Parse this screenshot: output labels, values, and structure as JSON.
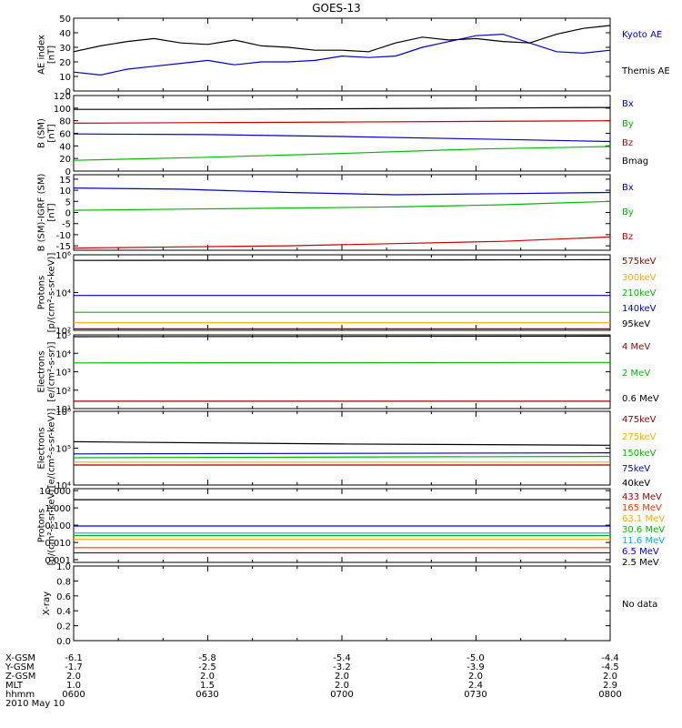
{
  "title": "GOES-13",
  "chart_data": [
    {
      "type": "line",
      "id": "ae",
      "ylabel": [
        "AE index",
        "[nT]"
      ],
      "ylim": [
        0,
        50
      ],
      "yticks": [
        "0",
        "10",
        "20",
        "30",
        "40",
        "50"
      ],
      "xlim": [
        6.0,
        8.0
      ],
      "legend": [
        {
          "label": "Kyoto AE",
          "color": "#0000cc"
        },
        {
          "label": "Themis AE",
          "color": "#000000"
        }
      ],
      "series": [
        {
          "name": "Kyoto AE",
          "color": "#0000cc",
          "x": [
            6.0,
            6.1,
            6.2,
            6.3,
            6.4,
            6.5,
            6.6,
            6.7,
            6.8,
            6.9,
            7.0,
            7.1,
            7.2,
            7.3,
            7.4,
            7.5,
            7.6,
            7.7,
            7.8,
            7.9,
            8.0
          ],
          "y": [
            13,
            11,
            15,
            17,
            19,
            21,
            18,
            20,
            20,
            21,
            24,
            23,
            24,
            30,
            34,
            38,
            39,
            33,
            27,
            26,
            28
          ]
        },
        {
          "name": "Themis AE",
          "color": "#000000",
          "x": [
            6.0,
            6.1,
            6.2,
            6.3,
            6.4,
            6.5,
            6.6,
            6.7,
            6.8,
            6.9,
            7.0,
            7.1,
            7.2,
            7.3,
            7.4,
            7.5,
            7.6,
            7.7,
            7.8,
            7.9,
            8.0
          ],
          "y": [
            27,
            31,
            34,
            36,
            33,
            32,
            35,
            31,
            30,
            28,
            28,
            27,
            33,
            37,
            35,
            36,
            34,
            33,
            39,
            43,
            45
          ]
        }
      ]
    },
    {
      "type": "line",
      "id": "bsm",
      "ylabel": [
        "B (SM)",
        "[nT]"
      ],
      "ylim": [
        0,
        120
      ],
      "yticks": [
        "0",
        "20",
        "40",
        "60",
        "80",
        "100",
        "120"
      ],
      "xlim": [
        6.0,
        8.0
      ],
      "legend": [
        {
          "label": "Bx",
          "color": "#0000cc"
        },
        {
          "label": "By",
          "color": "#00bb00"
        },
        {
          "label": "Bz",
          "color": "#cc0000"
        },
        {
          "label": "Bmag",
          "color": "#000000"
        }
      ],
      "series": [
        {
          "name": "Bx",
          "color": "#0000cc",
          "x": [
            6.0,
            6.5,
            7.0,
            7.5,
            8.0
          ],
          "y": [
            59,
            58,
            55,
            51,
            47
          ]
        },
        {
          "name": "By",
          "color": "#00bb00",
          "x": [
            6.0,
            6.5,
            7.0,
            7.5,
            8.0
          ],
          "y": [
            17,
            22,
            28,
            35,
            39
          ]
        },
        {
          "name": "Bz",
          "color": "#cc0000",
          "x": [
            6.0,
            6.5,
            7.0,
            7.5,
            8.0
          ],
          "y": [
            76,
            77,
            78,
            79,
            80
          ]
        },
        {
          "name": "Bmag",
          "color": "#000000",
          "x": [
            6.0,
            6.5,
            7.0,
            7.5,
            8.0
          ],
          "y": [
            98,
            98,
            99,
            100,
            101
          ]
        }
      ]
    },
    {
      "type": "line",
      "id": "bdiff",
      "ylabel": [
        "B (SM)-IGRF (SM)",
        "[nT]"
      ],
      "ylim": [
        -17,
        17
      ],
      "yticks": [
        "-15",
        "-10",
        "-5",
        "0",
        "5",
        "10",
        "15"
      ],
      "ytickvals": [
        -15,
        -10,
        -5,
        0,
        5,
        10,
        15
      ],
      "xlim": [
        6.0,
        8.0
      ],
      "legend": [
        {
          "label": "Bx",
          "color": "#0000cc"
        },
        {
          "label": "By",
          "color": "#00bb00"
        },
        {
          "label": "Bz",
          "color": "#cc0000"
        }
      ],
      "series": [
        {
          "name": "Bx",
          "color": "#0000cc",
          "x": [
            6.0,
            6.4,
            6.8,
            7.2,
            7.6,
            8.0
          ],
          "y": [
            11,
            10.5,
            9,
            8,
            8.5,
            9
          ]
        },
        {
          "name": "By",
          "color": "#00bb00",
          "x": [
            6.0,
            6.4,
            6.8,
            7.2,
            7.6,
            8.0
          ],
          "y": [
            1,
            1.5,
            2,
            2.5,
            3.5,
            5
          ]
        },
        {
          "name": "Bz",
          "color": "#cc0000",
          "x": [
            6.0,
            6.4,
            6.8,
            7.2,
            7.6,
            8.0
          ],
          "y": [
            -16,
            -15.5,
            -15,
            -14,
            -13,
            -11
          ]
        }
      ]
    },
    {
      "type": "line",
      "id": "protons-low",
      "log": true,
      "ylabel": [
        "Protons",
        "[p/(cm²-s-sr-keV)]"
      ],
      "ylim": [
        100,
        1000000
      ],
      "yticks": [
        "10²",
        "10⁴",
        "10⁶"
      ],
      "ytickvals": [
        100,
        10000,
        1000000
      ],
      "xlim": [
        6.0,
        8.0
      ],
      "legend": [
        {
          "label": "575keV",
          "color": "#990000"
        },
        {
          "label": "300keV",
          "color": "#ffaa00"
        },
        {
          "label": "210keV",
          "color": "#00bb00"
        },
        {
          "label": "140keV",
          "color": "#0000cc"
        },
        {
          "label": "95keV",
          "color": "#000000"
        }
      ],
      "series": [
        {
          "name": "575keV",
          "color": "#990000",
          "x": [
            6.0,
            8.0
          ],
          "y": [
            120,
            120
          ]
        },
        {
          "name": "300keV",
          "color": "#ffaa00",
          "x": [
            6.0,
            8.0
          ],
          "y": [
            250,
            250
          ]
        },
        {
          "name": "210keV",
          "color": "#00bb00",
          "x": [
            6.0,
            8.0
          ],
          "y": [
            900,
            900
          ]
        },
        {
          "name": "140keV",
          "color": "#0000cc",
          "x": [
            6.0,
            8.0
          ],
          "y": [
            7000,
            7000
          ]
        },
        {
          "name": "95keV",
          "color": "#000000",
          "x": [
            6.0,
            8.0
          ],
          "y": [
            500000,
            550000
          ]
        }
      ]
    },
    {
      "type": "line",
      "id": "electrons-high",
      "log": true,
      "ylabel": [
        "Electrons",
        "[e/(cm²-s-sr)]"
      ],
      "ylim": [
        10,
        100000
      ],
      "yticks": [
        "10¹",
        "10²",
        "10³",
        "10⁴",
        "10⁵"
      ],
      "ytickvals": [
        10,
        100,
        1000,
        10000,
        100000
      ],
      "xlim": [
        6.0,
        8.0
      ],
      "legend": [
        {
          "label": "4 MeV",
          "color": "#990000"
        },
        {
          "label": "2 MeV",
          "color": "#00bb00"
        },
        {
          "label": "0.6 MeV",
          "color": "#000000"
        }
      ],
      "series": [
        {
          "name": "4 MeV",
          "color": "#990000",
          "x": [
            6.0,
            8.0
          ],
          "y": [
            25,
            25
          ]
        },
        {
          "name": "2 MeV",
          "color": "#00bb00",
          "x": [
            6.0,
            8.0
          ],
          "y": [
            3000,
            3200
          ]
        },
        {
          "name": "0.6 MeV",
          "color": "#000000",
          "x": [
            6.0,
            8.0
          ],
          "y": [
            80000,
            85000
          ]
        }
      ]
    },
    {
      "type": "line",
      "id": "electrons-low",
      "log": true,
      "ylabel": [
        "Electrons",
        "[e/(cm²-s-sr-keV)]"
      ],
      "ylim": [
        10000,
        1000000
      ],
      "yticks": [
        "10⁴",
        "10⁵",
        "10⁶"
      ],
      "ytickvals": [
        10000,
        100000,
        1000000
      ],
      "xlim": [
        6.0,
        8.0
      ],
      "legend": [
        {
          "label": "475keV",
          "color": "#990000"
        },
        {
          "label": "275keV",
          "color": "#ffaa00"
        },
        {
          "label": "150keV",
          "color": "#00bb00"
        },
        {
          "label": "75keV",
          "color": "#0000cc"
        },
        {
          "label": "40keV",
          "color": "#000000"
        }
      ],
      "series": [
        {
          "name": "475keV",
          "color": "#990000",
          "x": [
            6.0,
            8.0
          ],
          "y": [
            35000,
            35000
          ]
        },
        {
          "name": "275keV",
          "color": "#ffaa00",
          "x": [
            6.0,
            8.0
          ],
          "y": [
            42000,
            42000
          ]
        },
        {
          "name": "150keV",
          "color": "#00bb00",
          "x": [
            6.0,
            8.0
          ],
          "y": [
            55000,
            60000
          ]
        },
        {
          "name": "75keV",
          "color": "#0000cc",
          "x": [
            6.0,
            8.0
          ],
          "y": [
            70000,
            75000
          ]
        },
        {
          "name": "40keV",
          "color": "#000000",
          "x": [
            6.0,
            7.0,
            8.0
          ],
          "y": [
            150000,
            130000,
            120000
          ]
        }
      ]
    },
    {
      "type": "line",
      "id": "protons-high",
      "log": true,
      "ylabel": [
        "Protons",
        "[p/(cm²-s-sr-keV)]"
      ],
      "ylim": [
        0.0007,
        13
      ],
      "yticks": [
        "0.001",
        "0.010",
        "0.100",
        "1.000",
        "10.000"
      ],
      "ytickvals": [
        0.001,
        0.01,
        0.1,
        1,
        10
      ],
      "xlim": [
        6.0,
        8.0
      ],
      "legend": [
        {
          "label": "433 MeV",
          "color": "#990000"
        },
        {
          "label": "165 MeV",
          "color": "#ff3300"
        },
        {
          "label": "63.1 MeV",
          "color": "#ffaa00"
        },
        {
          "label": "30.6 MeV",
          "color": "#00bb00"
        },
        {
          "label": "11.6 MeV",
          "color": "#00aaff"
        },
        {
          "label": "6.5 MeV",
          "color": "#0000cc"
        },
        {
          "label": "2.5 MeV",
          "color": "#000000"
        }
      ],
      "series": [
        {
          "name": "433 MeV",
          "color": "#990000",
          "x": [
            6.0,
            8.0
          ],
          "y": [
            0.0025,
            0.0025
          ]
        },
        {
          "name": "165 MeV",
          "color": "#ff3300",
          "x": [
            6.0,
            8.0
          ],
          "y": [
            0.005,
            0.005
          ]
        },
        {
          "name": "63.1 MeV",
          "color": "#ffaa00",
          "x": [
            6.0,
            8.0
          ],
          "y": [
            0.015,
            0.015
          ]
        },
        {
          "name": "30.6 MeV",
          "color": "#00bb00",
          "x": [
            6.0,
            8.0
          ],
          "y": [
            0.025,
            0.025
          ]
        },
        {
          "name": "11.6 MeV",
          "color": "#00aaff",
          "x": [
            6.0,
            8.0
          ],
          "y": [
            0.035,
            0.035
          ]
        },
        {
          "name": "6.5 MeV",
          "color": "#0000cc",
          "x": [
            6.0,
            8.0
          ],
          "y": [
            0.09,
            0.09
          ]
        },
        {
          "name": "2.5 MeV",
          "color": "#000000",
          "x": [
            6.0,
            8.0
          ],
          "y": [
            3.0,
            3.0
          ]
        }
      ]
    },
    {
      "type": "line",
      "id": "xray",
      "ylabel": [
        "X-ray"
      ],
      "ylim": [
        0.0,
        1.0
      ],
      "yticks": [
        "0.0",
        "0.2",
        "0.4",
        "0.6",
        "0.8",
        "1.0"
      ],
      "xlim": [
        6.0,
        8.0
      ],
      "note": "No data",
      "series": []
    }
  ],
  "axis_table": {
    "rows": [
      {
        "label": "X-GSM",
        "values": [
          "-6.1",
          "-5.8",
          "-5.4",
          "-5.0",
          "-4.4"
        ]
      },
      {
        "label": "Y-GSM",
        "values": [
          "-1.7",
          "-2.5",
          "-3.2",
          "-3.9",
          "-4.5"
        ]
      },
      {
        "label": "Z-GSM",
        "values": [
          "2.0",
          "2.0",
          "2.0",
          "2.0",
          "2.0"
        ]
      },
      {
        "label": "MLT",
        "values": [
          "1.0",
          "1.5",
          "2.0",
          "2.4",
          "2.9"
        ]
      },
      {
        "label": "hhmm",
        "values": [
          "0600",
          "0630",
          "0700",
          "0730",
          "0800"
        ]
      }
    ],
    "date": "2010 May 10"
  }
}
